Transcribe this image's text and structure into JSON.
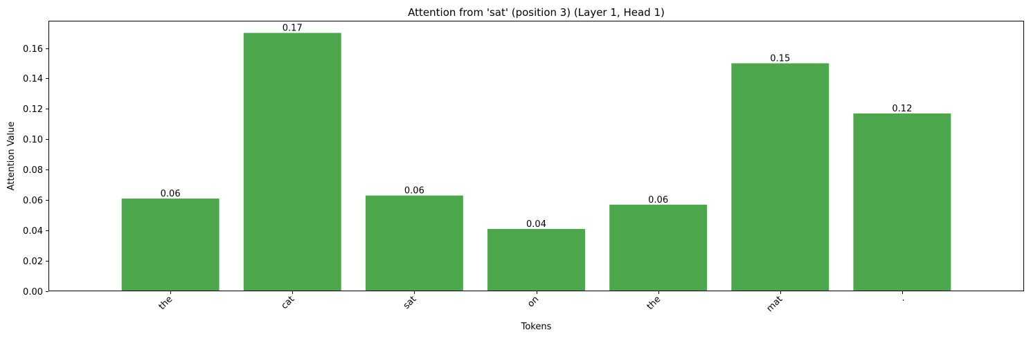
{
  "chart_data": {
    "type": "bar",
    "title": "Attention from 'sat' (position 3) (Layer 1, Head 1)",
    "xlabel": "Tokens",
    "ylabel": "Attention Value",
    "categories": [
      "the",
      "cat",
      "sat",
      "on",
      "the",
      "mat",
      "."
    ],
    "values": [
      0.061,
      0.17,
      0.063,
      0.041,
      0.057,
      0.15,
      0.117
    ],
    "data_labels": [
      "0.06",
      "0.17",
      "0.06",
      "0.04",
      "0.06",
      "0.15",
      "0.12"
    ],
    "ylim": [
      0,
      0.178
    ],
    "yticks": [
      0.0,
      0.02,
      0.04,
      0.06,
      0.08,
      0.1,
      0.12,
      0.14,
      0.16
    ],
    "ytick_labels": [
      "0.00",
      "0.02",
      "0.04",
      "0.06",
      "0.08",
      "0.10",
      "0.12",
      "0.14",
      "0.16"
    ],
    "bar_color": "#4ca64c",
    "grid": false,
    "legend": "none"
  }
}
